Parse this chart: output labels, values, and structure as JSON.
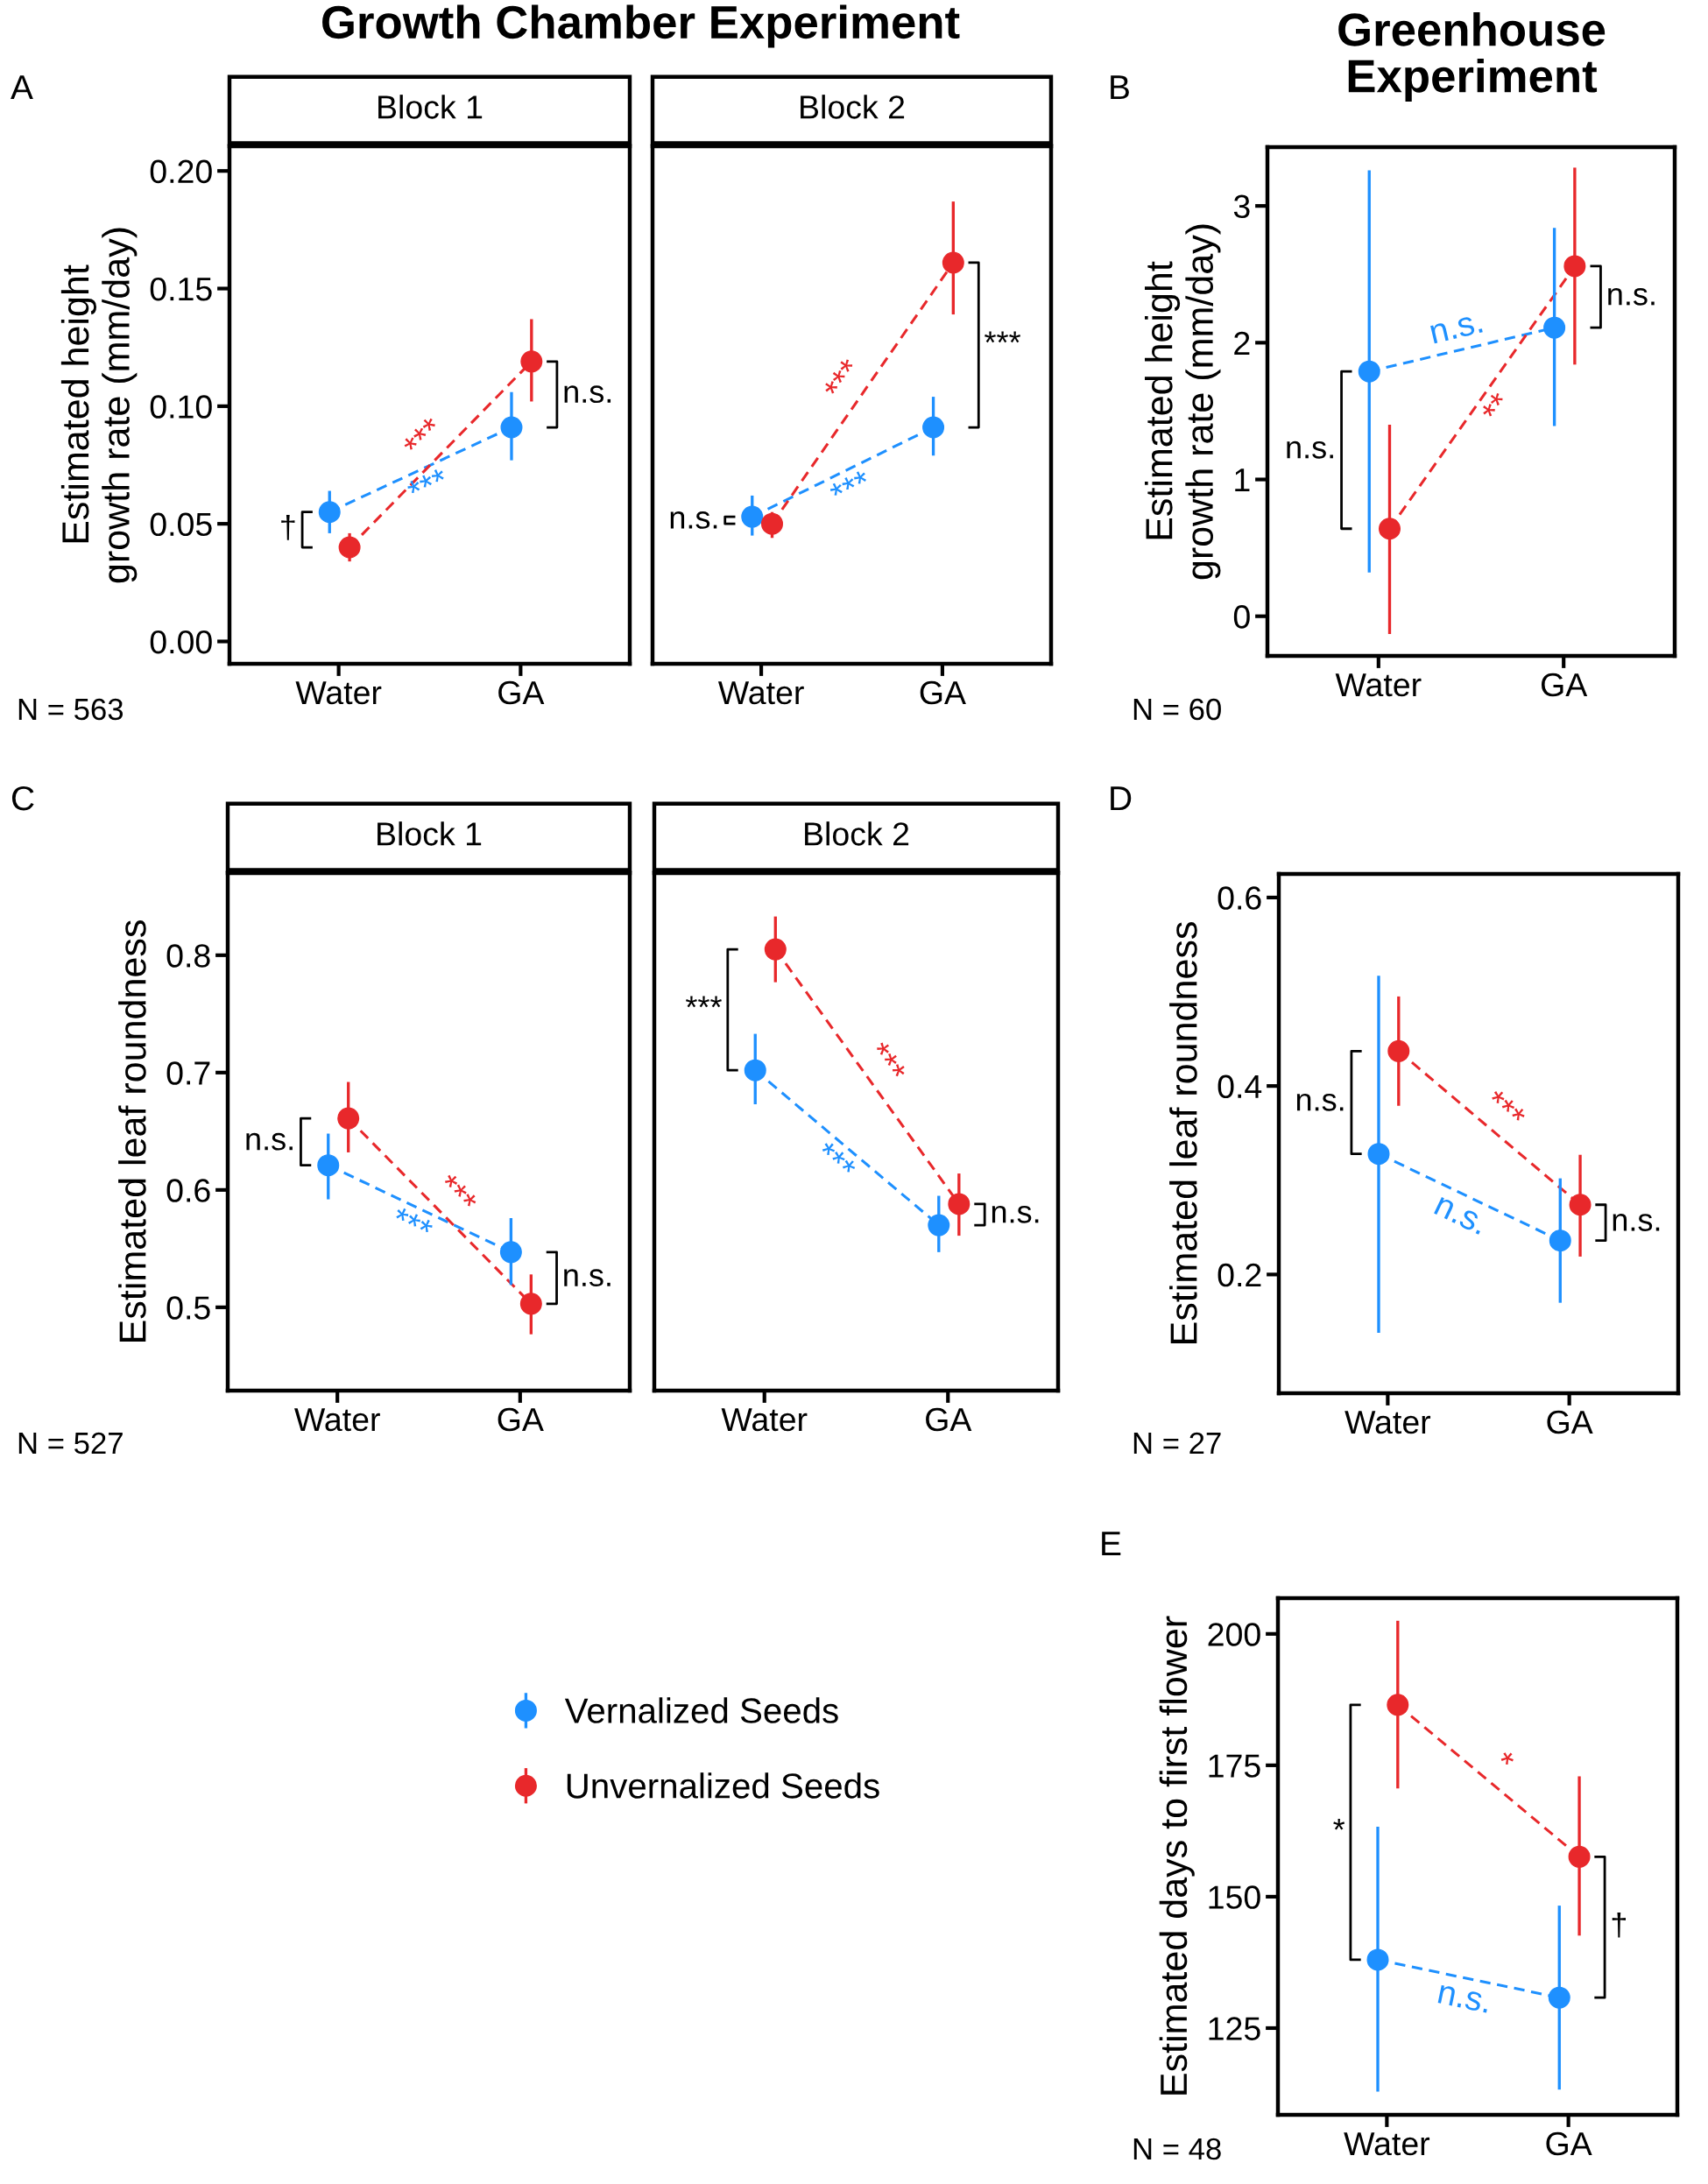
{
  "chart_data": [
    {
      "type": "line",
      "title": "Block 1",
      "ylabel": "Estimated height\ngrowth rate (mm/day)",
      "categories": [
        "Water",
        "GA"
      ],
      "ylim": [
        -0.0095,
        0.2105
      ],
      "yticks": [
        {
          "value": 0.0,
          "label": "0.00"
        },
        {
          "value": 0.05,
          "label": "0.05"
        },
        {
          "value": 0.1,
          "label": "0.10"
        },
        {
          "value": 0.15,
          "label": "0.15"
        },
        {
          "value": 0.2,
          "label": "0.20"
        }
      ],
      "line_style": "dashed",
      "marker": "circle",
      "series": [
        {
          "color": "#1e90ff",
          "values": [
            0.055,
            0.091
          ],
          "errors": [
            [
              0.046,
              0.064
            ],
            [
              0.077,
              0.106
            ]
          ]
        },
        {
          "color": "#e8282b",
          "values": [
            0.04,
            0.119
          ],
          "errors": [
            [
              0.034,
              0.046
            ],
            [
              0.102,
              0.137
            ]
          ]
        }
      ],
      "annotations": [
        "A",
        "N = 563",
        "Growth Chamber Experiment",
        "†",
        "n.s.",
        "***",
        "***"
      ]
    },
    {
      "type": "line",
      "title": "Block 2",
      "categories": [
        "Water",
        "GA"
      ],
      "ylim": [
        -0.0095,
        0.2105
      ],
      "tick_labels": "x",
      "line_style": "dashed",
      "marker": "circle",
      "series": [
        {
          "color": "#1e90ff",
          "values": [
            0.053,
            0.091
          ],
          "errors": [
            [
              0.045,
              0.062
            ],
            [
              0.079,
              0.104
            ]
          ]
        },
        {
          "color": "#e8282b",
          "values": [
            0.05,
            0.161
          ],
          "errors": [
            [
              0.044,
              0.055
            ],
            [
              0.139,
              0.187
            ]
          ]
        }
      ],
      "annotations": [
        "n.s.",
        "***",
        "***",
        "***"
      ]
    },
    {
      "type": "line",
      "ylabel": "Estimated height\ngrowth rate (mm/day)",
      "categories": [
        "Water",
        "GA"
      ],
      "ylim": [
        -0.29,
        3.43
      ],
      "yticks": [
        0,
        1,
        2,
        3
      ],
      "line_style": "dashed",
      "marker": "circle",
      "series": [
        {
          "color": "#1e90ff",
          "values": [
            1.79,
            2.11
          ],
          "errors": [
            [
              0.32,
              3.26
            ],
            [
              1.39,
              2.84
            ]
          ]
        },
        {
          "color": "#e8282b",
          "values": [
            0.64,
            2.56
          ],
          "errors": [
            [
              -0.13,
              1.4
            ],
            [
              1.84,
              3.28
            ]
          ]
        }
      ],
      "annotations": [
        "B",
        "N = 60",
        "Greenhouse Experiment",
        "n.s.",
        "n.s.",
        "n.s.",
        "**"
      ]
    },
    {
      "type": "line",
      "title": "Block 1",
      "ylabel": "Estimated leaf roundness",
      "categories": [
        "Water",
        "GA"
      ],
      "ylim": [
        0.429,
        0.87
      ],
      "yticks": [
        0.5,
        0.6,
        0.7,
        0.8
      ],
      "line_style": "dashed",
      "marker": "circle",
      "series": [
        {
          "color": "#1e90ff",
          "values": [
            0.621,
            0.547
          ],
          "errors": [
            [
              0.592,
              0.648
            ],
            [
              0.519,
              0.576
            ]
          ]
        },
        {
          "color": "#e8282b",
          "values": [
            0.661,
            0.503
          ],
          "errors": [
            [
              0.632,
              0.692
            ],
            [
              0.477,
              0.528
            ]
          ]
        }
      ],
      "annotations": [
        "C",
        "N = 527",
        "n.s.",
        "n.s.",
        "***",
        "***"
      ]
    },
    {
      "type": "line",
      "title": "Block 2",
      "categories": [
        "Water",
        "GA"
      ],
      "ylim": [
        0.429,
        0.87
      ],
      "tick_labels": "x",
      "line_style": "dashed",
      "marker": "circle",
      "series": [
        {
          "color": "#1e90ff",
          "values": [
            0.702,
            0.57
          ],
          "errors": [
            [
              0.673,
              0.733
            ],
            [
              0.547,
              0.595
            ]
          ]
        },
        {
          "color": "#e8282b",
          "values": [
            0.805,
            0.588
          ],
          "errors": [
            [
              0.777,
              0.833
            ],
            [
              0.561,
              0.614
            ]
          ]
        }
      ],
      "annotations": [
        "***",
        "n.s.",
        "***",
        "***"
      ]
    },
    {
      "type": "line",
      "ylabel": "Estimated leaf roundness",
      "categories": [
        "Water",
        "GA"
      ],
      "ylim": [
        0.074,
        0.625
      ],
      "yticks": [
        0.2,
        0.4,
        0.6
      ],
      "line_style": "dashed",
      "marker": "circle",
      "series": [
        {
          "color": "#1e90ff",
          "values": [
            0.328,
            0.236
          ],
          "errors": [
            [
              0.138,
              0.517
            ],
            [
              0.17,
              0.302
            ]
          ]
        },
        {
          "color": "#e8282b",
          "values": [
            0.437,
            0.274
          ],
          "errors": [
            [
              0.379,
              0.495
            ],
            [
              0.219,
              0.327
            ]
          ]
        }
      ],
      "annotations": [
        "D",
        "N = 27",
        "n.s.",
        "n.s.",
        "n.s.",
        "***"
      ]
    },
    {
      "type": "line",
      "ylabel": "Estimated days to first flower",
      "categories": [
        "Water",
        "GA"
      ],
      "ylim": [
        108.5,
        206.8
      ],
      "yticks": [
        125,
        150,
        175,
        200
      ],
      "line_style": "dashed",
      "marker": "circle",
      "legend": "left",
      "series": [
        {
          "name": "Vernalized Seeds",
          "color": "#1e90ff",
          "values": [
            138.0,
            130.8
          ],
          "errors": [
            [
              112.9,
              163.3
            ],
            [
              113.3,
              148.3
            ]
          ]
        },
        {
          "name": "Unvernalized Seeds",
          "color": "#e8282b",
          "values": [
            186.5,
            157.6
          ],
          "errors": [
            [
              170.6,
              202.5
            ],
            [
              142.6,
              172.9
            ]
          ]
        }
      ],
      "annotations": [
        "E",
        "N = 48",
        "*",
        "†",
        "n.s.",
        "*"
      ]
    }
  ]
}
